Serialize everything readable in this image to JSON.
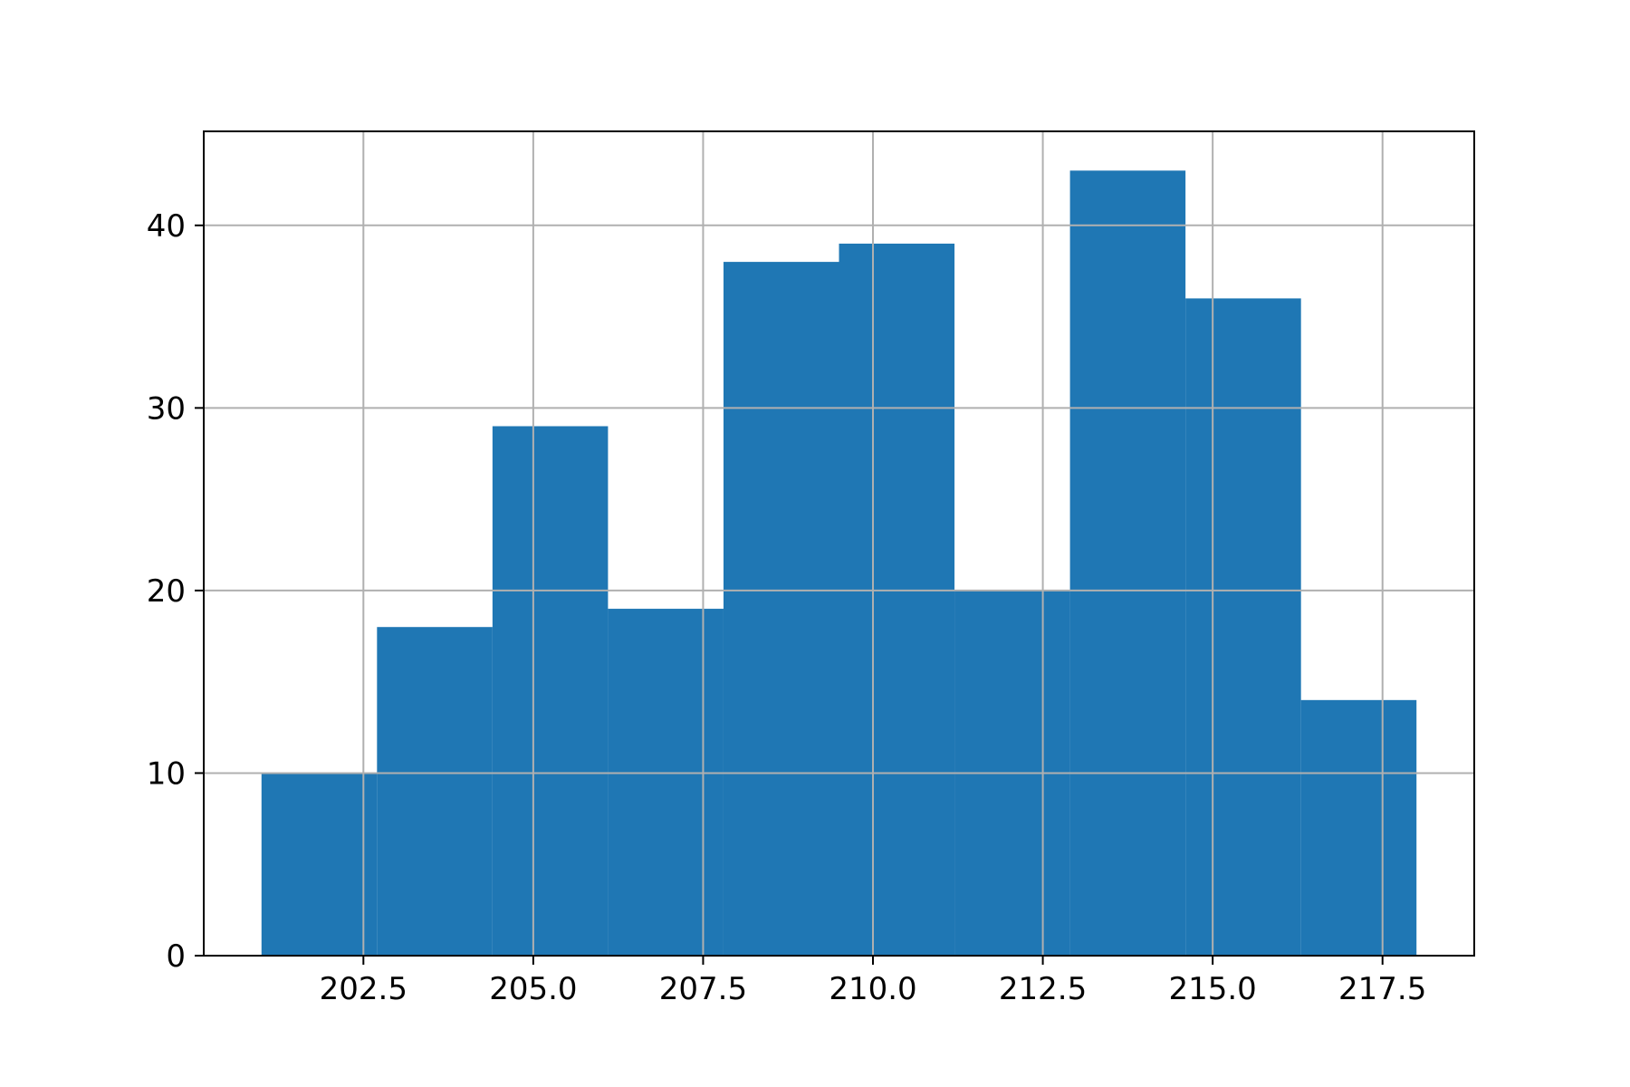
{
  "chart_data": {
    "type": "bar",
    "subtype": "histogram",
    "title": "",
    "xlabel": "",
    "ylabel": "",
    "bins": [
      {
        "x0": 201.0,
        "x1": 202.7,
        "count": 10
      },
      {
        "x0": 202.7,
        "x1": 204.4,
        "count": 18
      },
      {
        "x0": 204.4,
        "x1": 206.1,
        "count": 29
      },
      {
        "x0": 206.1,
        "x1": 207.8,
        "count": 19
      },
      {
        "x0": 207.8,
        "x1": 209.5,
        "count": 38
      },
      {
        "x0": 209.5,
        "x1": 211.2,
        "count": 39
      },
      {
        "x0": 211.2,
        "x1": 212.9,
        "count": 20
      },
      {
        "x0": 212.9,
        "x1": 214.6,
        "count": 43
      },
      {
        "x0": 214.6,
        "x1": 216.3,
        "count": 36
      },
      {
        "x0": 216.3,
        "x1": 218.0,
        "count": 14
      }
    ],
    "xlim": [
      200.15,
      218.85
    ],
    "ylim": [
      0,
      45.15
    ],
    "xticks": [
      202.5,
      205.0,
      207.5,
      210.0,
      212.5,
      215.0,
      217.5
    ],
    "xtick_labels": [
      "202.5",
      "205.0",
      "207.5",
      "210.0",
      "212.5",
      "215.0",
      "217.5"
    ],
    "yticks": [
      0,
      10,
      20,
      30,
      40
    ],
    "ytick_labels": [
      "0",
      "10",
      "20",
      "30",
      "40"
    ],
    "grid": true,
    "legend": "none",
    "colors": {
      "bar": "#1f77b4",
      "grid": "#b0b0b0",
      "axes": "#000000",
      "background": "#ffffff"
    }
  }
}
